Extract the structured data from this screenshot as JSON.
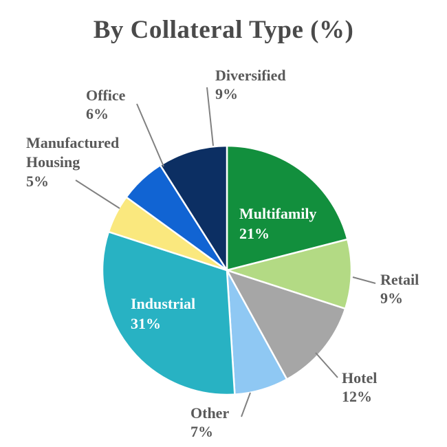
{
  "page": {
    "background": "#ffffff"
  },
  "chart_data": {
    "type": "pie",
    "title": "By Collateral Type (%)",
    "legend_position": "none",
    "start_angle_deg": 0,
    "direction": "clockwise",
    "slices": [
      {
        "label": "Multifamily",
        "value": 21,
        "pct_label": "21%",
        "color": "#128f3d",
        "label_placement": "inside"
      },
      {
        "label": "Retail",
        "value": 9,
        "pct_label": "9%",
        "color": "#b3da84",
        "label_placement": "outside"
      },
      {
        "label": "Hotel",
        "value": 12,
        "pct_label": "12%",
        "color": "#a6a6a6",
        "label_placement": "outside"
      },
      {
        "label": "Other",
        "value": 7,
        "pct_label": "7%",
        "color": "#8fc8f3",
        "label_placement": "outside"
      },
      {
        "label": "Industrial",
        "value": 31,
        "pct_label": "31%",
        "color": "#28b2c3",
        "label_placement": "inside"
      },
      {
        "label": "Manufactured Housing",
        "value": 5,
        "pct_label": "5%",
        "color": "#fae87e",
        "label_placement": "outside",
        "label_lines": [
          "Manufactured",
          "Housing"
        ]
      },
      {
        "label": "Office",
        "value": 6,
        "pct_label": "6%",
        "color": "#1164d3",
        "label_placement": "outside"
      },
      {
        "label": "Diversified",
        "value": 9,
        "pct_label": "9%",
        "color": "#0c2f63",
        "label_placement": "outside"
      }
    ],
    "colors": {
      "title": "#4a4a4a",
      "outside_label": "#595959",
      "inside_label": "#ffffff",
      "leader_line": "#808080",
      "slice_border": "#ffffff"
    }
  }
}
